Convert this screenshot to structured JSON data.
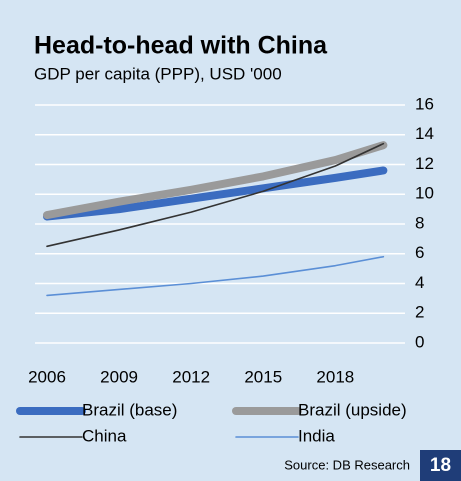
{
  "chart_data": {
    "type": "line",
    "title": "Head-to-head with China",
    "subtitle": "GDP per capita (PPP), USD '000",
    "source": "Source: DB Research",
    "page_number": "18",
    "x": [
      2006,
      2009,
      2012,
      2015,
      2018,
      2020
    ],
    "xlim": [
      2005.5,
      2020.9
    ],
    "xticks": [
      2006,
      2009,
      2012,
      2015,
      2018
    ],
    "ylim": [
      0,
      16
    ],
    "yticks": [
      0,
      2,
      4,
      6,
      8,
      10,
      12,
      14,
      16
    ],
    "grid": true,
    "series": [
      {
        "name": "Brazil (base)",
        "color": "#3b6cc0",
        "width": 8,
        "values": [
          8.5,
          9.0,
          9.7,
          10.4,
          11.1,
          11.6
        ]
      },
      {
        "name": "Brazil (upside)",
        "color": "#9a9a9a",
        "width": 8,
        "values": [
          8.6,
          9.5,
          10.3,
          11.2,
          12.3,
          13.3
        ]
      },
      {
        "name": "China",
        "color": "#333333",
        "width": 1.6,
        "values": [
          6.5,
          7.6,
          8.8,
          10.2,
          11.9,
          13.4
        ]
      },
      {
        "name": "India",
        "color": "#5b8fd6",
        "width": 1.6,
        "values": [
          3.2,
          3.6,
          4.0,
          4.5,
          5.2,
          5.8
        ]
      }
    ]
  }
}
